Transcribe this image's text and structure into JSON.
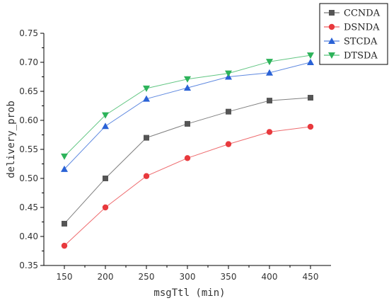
{
  "chart_data": {
    "type": "line",
    "title": "",
    "xlabel": "msgTtl (min)",
    "ylabel": "delivery_prob",
    "x": [
      150,
      200,
      250,
      300,
      350,
      400,
      450
    ],
    "xticks": [
      "150",
      "200",
      "250",
      "300",
      "350",
      "400",
      "450"
    ],
    "xlim": [
      125,
      475
    ],
    "yticks": [
      "0.35",
      "0.40",
      "0.45",
      "0.50",
      "0.55",
      "0.60",
      "0.65",
      "0.70",
      "0.75"
    ],
    "ylim": [
      0.35,
      0.75
    ],
    "grid": false,
    "legend_position": "top-right",
    "series": [
      {
        "name": "CCNDA",
        "color": "#555555",
        "marker": "square",
        "values": [
          0.422,
          0.5,
          0.57,
          0.594,
          0.615,
          0.634,
          0.639
        ]
      },
      {
        "name": "DSNDA",
        "color": "#e8393d",
        "marker": "circle",
        "values": [
          0.384,
          0.45,
          0.504,
          0.535,
          0.559,
          0.58,
          0.589
        ]
      },
      {
        "name": "STCDA",
        "color": "#2a62d6",
        "marker": "triangle-up",
        "values": [
          0.516,
          0.59,
          0.637,
          0.656,
          0.675,
          0.682,
          0.7
        ]
      },
      {
        "name": "DTSDA",
        "color": "#2db35a",
        "marker": "triangle-down",
        "values": [
          0.538,
          0.609,
          0.655,
          0.671,
          0.681,
          0.701,
          0.712
        ]
      }
    ]
  }
}
